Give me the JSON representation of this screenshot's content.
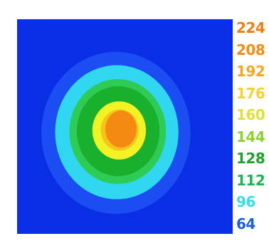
{
  "chart_data": {
    "type": "heatmap",
    "title": "",
    "xlabel": "",
    "ylabel": "",
    "background_value": 40,
    "peak_value": 224,
    "colorbar": {
      "ticks": [
        {
          "label": "224",
          "value": 224,
          "color": "#f07f10"
        },
        {
          "label": "208",
          "value": 208,
          "color": "#f58c14"
        },
        {
          "label": "192",
          "value": 192,
          "color": "#f5a623"
        },
        {
          "label": "176",
          "value": 176,
          "color": "#f4d037"
        },
        {
          "label": "160",
          "value": 160,
          "color": "#e2e038"
        },
        {
          "label": "144",
          "value": 144,
          "color": "#8cd136"
        },
        {
          "label": "128",
          "value": 128,
          "color": "#1fa22b"
        },
        {
          "label": "112",
          "value": 112,
          "color": "#1fb355"
        },
        {
          "label": "96",
          "value": 96,
          "color": "#38dcea"
        },
        {
          "label": "64",
          "value": 64,
          "color": "#1f5fd6"
        }
      ]
    },
    "color_scale": [
      {
        "value": 40,
        "color": "#0a2de6"
      },
      {
        "value": 64,
        "color": "#1a4ef2"
      },
      {
        "value": 96,
        "color": "#2fd8f0"
      },
      {
        "value": 128,
        "color": "#2fcc55"
      },
      {
        "value": 144,
        "color": "#1ab02e"
      },
      {
        "value": 176,
        "color": "#f2f225"
      },
      {
        "value": 192,
        "color": "#f7c51a"
      },
      {
        "value": 224,
        "color": "#f58a12"
      }
    ]
  }
}
